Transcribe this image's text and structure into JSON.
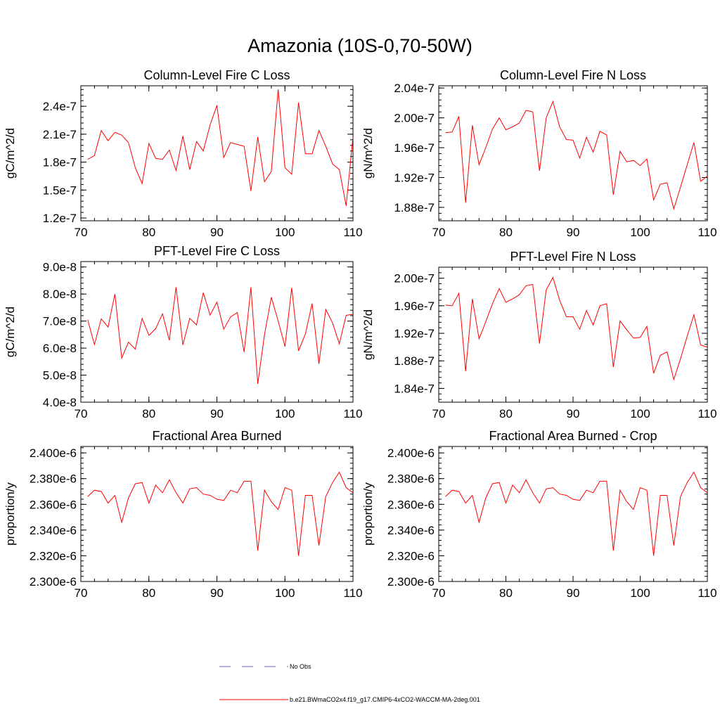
{
  "title": "Amazonia (10S-0,70-50W)",
  "colors": {
    "series": "#ff0000",
    "obs": "#5b6bd6",
    "axis": "#000000"
  },
  "legend": [
    {
      "label": "No Obs",
      "style": "dashed",
      "color": "#5b6bd6"
    },
    {
      "label": "b.e21.BWmaCO2x4.f19_g17.CMIP6-4xCO2-WACCM-MA-2deg.001",
      "style": "solid",
      "color": "#ff0000"
    }
  ],
  "chart_data": [
    {
      "type": "line",
      "title": "Column-Level Fire C Loss",
      "ylabel": "gC/m^2/d",
      "xlim": [
        70,
        110
      ],
      "ylim": [
        1.17e-07,
        2.62e-07
      ],
      "xticks": [
        70,
        80,
        90,
        100,
        110
      ],
      "xtick_labels": [
        "70",
        "80",
        "90",
        "100",
        "110"
      ],
      "yticks": [
        1.2e-07,
        1.5e-07,
        1.8e-07,
        2.1e-07,
        2.4e-07
      ],
      "ytick_labels": [
        "1.2e-7",
        "1.5e-7",
        "1.8e-7",
        "2.1e-7",
        "2.4e-7"
      ],
      "x": [
        71,
        72,
        73,
        74,
        75,
        76,
        77,
        78,
        79,
        80,
        81,
        82,
        83,
        84,
        85,
        86,
        87,
        88,
        89,
        90,
        91,
        92,
        93,
        94,
        95,
        96,
        97,
        98,
        99,
        100,
        101,
        102,
        103,
        104,
        105,
        106,
        107,
        108,
        109,
        110
      ],
      "series": [
        {
          "name": "b.e21.BWmaCO2x4.f19_g17.CMIP6-4xCO2-WACCM-MA-2deg.001",
          "values": [
            1.83e-07,
            1.87e-07,
            2.14e-07,
            2.03e-07,
            2.12e-07,
            2.09e-07,
            2.01e-07,
            1.74e-07,
            1.57e-07,
            2e-07,
            1.84e-07,
            1.83e-07,
            1.93e-07,
            1.71e-07,
            2.08e-07,
            1.72e-07,
            2.02e-07,
            1.92e-07,
            2.2e-07,
            2.41e-07,
            1.85e-07,
            2.01e-07,
            1.99e-07,
            1.97e-07,
            1.49e-07,
            2.07e-07,
            1.59e-07,
            1.7e-07,
            2.58e-07,
            1.74e-07,
            1.67e-07,
            2.44e-07,
            1.89e-07,
            1.89e-07,
            2.14e-07,
            1.97e-07,
            1.78e-07,
            1.72e-07,
            1.33e-07,
            2.07e-07
          ]
        }
      ]
    },
    {
      "type": "line",
      "title": "Column-Level Fire N Loss",
      "ylabel": "gN/m^2/d",
      "xlim": [
        70,
        110
      ],
      "ylim": [
        1.862e-07,
        2.043e-07
      ],
      "xticks": [
        70,
        80,
        90,
        100,
        110
      ],
      "xtick_labels": [
        "70",
        "80",
        "90",
        "100",
        "110"
      ],
      "yticks": [
        1.88e-07,
        1.92e-07,
        1.96e-07,
        2e-07,
        2.04e-07
      ],
      "ytick_labels": [
        "1.88e-7",
        "1.92e-7",
        "1.96e-7",
        "2.00e-7",
        "2.04e-7"
      ],
      "x": [
        71,
        72,
        73,
        74,
        75,
        76,
        77,
        78,
        79,
        80,
        81,
        82,
        83,
        84,
        85,
        86,
        87,
        88,
        89,
        90,
        91,
        92,
        93,
        94,
        95,
        96,
        97,
        98,
        99,
        100,
        101,
        102,
        103,
        104,
        105,
        106,
        107,
        108,
        109,
        110
      ],
      "series": [
        {
          "name": "b.e21.BWmaCO2x4.f19_g17.CMIP6-4xCO2-WACCM-MA-2deg.001",
          "values": [
            1.98e-07,
            1.981e-07,
            2.002e-07,
            1.886e-07,
            1.99e-07,
            1.937e-07,
            1.96e-07,
            1.985e-07,
            2e-07,
            1.984e-07,
            1.988e-07,
            1.993e-07,
            2.01e-07,
            2.008e-07,
            1.929e-07,
            2e-07,
            2.022e-07,
            1.988e-07,
            1.971e-07,
            1.97e-07,
            1.946e-07,
            1.974e-07,
            1.954e-07,
            1.982e-07,
            1.977e-07,
            1.897e-07,
            1.955e-07,
            1.941e-07,
            1.943e-07,
            1.936e-07,
            1.945e-07,
            1.89e-07,
            1.911e-07,
            1.913e-07,
            1.878e-07,
            1.907e-07,
            1.937e-07,
            1.967e-07,
            1.915e-07,
            1.922e-07
          ]
        }
      ]
    },
    {
      "type": "line",
      "title": "PFT-Level Fire C Loss",
      "ylabel": "gC/m^2/d",
      "xlim": [
        70,
        110
      ],
      "ylim": [
        4e-08,
        9.2e-08
      ],
      "xticks": [
        70,
        80,
        90,
        100,
        110
      ],
      "xtick_labels": [
        "70",
        "80",
        "90",
        "100",
        "110"
      ],
      "yticks": [
        4e-08,
        5e-08,
        6e-08,
        7e-08,
        8e-08,
        9e-08
      ],
      "ytick_labels": [
        "4.0e-8",
        "5.0e-8",
        "6.0e-8",
        "7.0e-8",
        "8.0e-8",
        "9.0e-8"
      ],
      "x": [
        71,
        72,
        73,
        74,
        75,
        76,
        77,
        78,
        79,
        80,
        81,
        82,
        83,
        84,
        85,
        86,
        87,
        88,
        89,
        90,
        91,
        92,
        93,
        94,
        95,
        96,
        97,
        98,
        99,
        100,
        101,
        102,
        103,
        104,
        105,
        106,
        107,
        108,
        109,
        110
      ],
      "series": [
        {
          "name": "b.e21.BWmaCO2x4.f19_g17.CMIP6-4xCO2-WACCM-MA-2deg.001",
          "values": [
            7.05e-08,
            6.13e-08,
            7.08e-08,
            6.78e-08,
            8e-08,
            5.63e-08,
            6.22e-08,
            5.96e-08,
            7.1e-08,
            6.47e-08,
            6.72e-08,
            7.27e-08,
            6.29e-08,
            8.25e-08,
            6.12e-08,
            7.1e-08,
            6.86e-08,
            8.05e-08,
            7.22e-08,
            7.7e-08,
            6.7e-08,
            7.15e-08,
            7.32e-08,
            5.85e-08,
            8.25e-08,
            4.68e-08,
            6.5e-08,
            7.88e-08,
            7e-08,
            6.06e-08,
            8.23e-08,
            5.9e-08,
            6.52e-08,
            7.65e-08,
            5.42e-08,
            7.43e-08,
            6.93e-08,
            6.16e-08,
            7.21e-08,
            7.25e-08
          ]
        }
      ]
    },
    {
      "type": "line",
      "title": "PFT-Level Fire N Loss",
      "ylabel": "gN/m^2/d",
      "xlim": [
        70,
        110
      ],
      "ylim": [
        1.82e-07,
        2.016e-07
      ],
      "xticks": [
        70,
        80,
        90,
        100,
        110
      ],
      "xtick_labels": [
        "70",
        "80",
        "90",
        "100",
        "110"
      ],
      "yticks": [
        1.84e-07,
        1.88e-07,
        1.92e-07,
        1.96e-07,
        2e-07
      ],
      "ytick_labels": [
        "1.84e-7",
        "1.88e-7",
        "1.92e-7",
        "1.96e-7",
        "2.00e-7"
      ],
      "x": [
        71,
        72,
        73,
        74,
        75,
        76,
        77,
        78,
        79,
        80,
        81,
        82,
        83,
        84,
        85,
        86,
        87,
        88,
        89,
        90,
        91,
        92,
        93,
        94,
        95,
        96,
        97,
        98,
        99,
        100,
        101,
        102,
        103,
        104,
        105,
        106,
        107,
        108,
        109,
        110
      ],
      "series": [
        {
          "name": "b.e21.BWmaCO2x4.f19_g17.CMIP6-4xCO2-WACCM-MA-2deg.001",
          "values": [
            1.961e-07,
            1.96e-07,
            1.978e-07,
            1.865e-07,
            1.97e-07,
            1.912e-07,
            1.937e-07,
            1.963e-07,
            1.985e-07,
            1.965e-07,
            1.97e-07,
            1.976e-07,
            1.989e-07,
            1.991e-07,
            1.905e-07,
            1.983e-07,
            2.001e-07,
            1.968e-07,
            1.944e-07,
            1.944e-07,
            1.926e-07,
            1.953e-07,
            1.932e-07,
            1.96e-07,
            1.963e-07,
            1.871e-07,
            1.938e-07,
            1.925e-07,
            1.913e-07,
            1.914e-07,
            1.93e-07,
            1.862e-07,
            1.888e-07,
            1.893e-07,
            1.853e-07,
            1.883e-07,
            1.916e-07,
            1.947e-07,
            1.903e-07,
            1.9e-07
          ]
        }
      ]
    },
    {
      "type": "line",
      "title": "Fractional Area Burned",
      "ylabel": "proportion/y",
      "xlim": [
        70,
        110
      ],
      "ylim": [
        2.3e-06,
        2.405e-06
      ],
      "xticks": [
        70,
        80,
        90,
        100,
        110
      ],
      "xtick_labels": [
        "70",
        "80",
        "90",
        "100",
        "110"
      ],
      "yticks": [
        2.3e-06,
        2.32e-06,
        2.34e-06,
        2.36e-06,
        2.38e-06,
        2.4e-06
      ],
      "ytick_labels": [
        "2.300e-6",
        "2.320e-6",
        "2.340e-6",
        "2.360e-6",
        "2.380e-6",
        "2.400e-6"
      ],
      "x": [
        71,
        72,
        73,
        74,
        75,
        76,
        77,
        78,
        79,
        80,
        81,
        82,
        83,
        84,
        85,
        86,
        87,
        88,
        89,
        90,
        91,
        92,
        93,
        94,
        95,
        96,
        97,
        98,
        99,
        100,
        101,
        102,
        103,
        104,
        105,
        106,
        107,
        108,
        109,
        110
      ],
      "series": [
        {
          "name": "b.e21.BWmaCO2x4.f19_g17.CMIP6-4xCO2-WACCM-MA-2deg.001",
          "values": [
            2.366e-06,
            2.371e-06,
            2.37e-06,
            2.361e-06,
            2.367e-06,
            2.346e-06,
            2.365e-06,
            2.376e-06,
            2.377e-06,
            2.361e-06,
            2.375e-06,
            2.369e-06,
            2.379e-06,
            2.369e-06,
            2.361e-06,
            2.372e-06,
            2.373e-06,
            2.368e-06,
            2.367e-06,
            2.364e-06,
            2.363e-06,
            2.371e-06,
            2.369e-06,
            2.378e-06,
            2.378e-06,
            2.324e-06,
            2.371e-06,
            2.362e-06,
            2.356e-06,
            2.373e-06,
            2.371e-06,
            2.32e-06,
            2.367e-06,
            2.367e-06,
            2.328e-06,
            2.366e-06,
            2.377e-06,
            2.385e-06,
            2.373e-06,
            2.369e-06
          ]
        }
      ]
    },
    {
      "type": "line",
      "title": "Fractional Area Burned - Crop",
      "ylabel": "proportion/y",
      "xlim": [
        70,
        110
      ],
      "ylim": [
        2.3e-06,
        2.405e-06
      ],
      "xticks": [
        70,
        80,
        90,
        100,
        110
      ],
      "xtick_labels": [
        "70",
        "80",
        "90",
        "100",
        "110"
      ],
      "yticks": [
        2.3e-06,
        2.32e-06,
        2.34e-06,
        2.36e-06,
        2.38e-06,
        2.4e-06
      ],
      "ytick_labels": [
        "2.300e-6",
        "2.320e-6",
        "2.340e-6",
        "2.360e-6",
        "2.380e-6",
        "2.400e-6"
      ],
      "x": [
        71,
        72,
        73,
        74,
        75,
        76,
        77,
        78,
        79,
        80,
        81,
        82,
        83,
        84,
        85,
        86,
        87,
        88,
        89,
        90,
        91,
        92,
        93,
        94,
        95,
        96,
        97,
        98,
        99,
        100,
        101,
        102,
        103,
        104,
        105,
        106,
        107,
        108,
        109,
        110
      ],
      "series": [
        {
          "name": "b.e21.BWmaCO2x4.f19_g17.CMIP6-4xCO2-WACCM-MA-2deg.001",
          "values": [
            2.366e-06,
            2.371e-06,
            2.37e-06,
            2.361e-06,
            2.367e-06,
            2.346e-06,
            2.365e-06,
            2.376e-06,
            2.377e-06,
            2.361e-06,
            2.375e-06,
            2.369e-06,
            2.379e-06,
            2.369e-06,
            2.361e-06,
            2.372e-06,
            2.373e-06,
            2.368e-06,
            2.367e-06,
            2.364e-06,
            2.363e-06,
            2.371e-06,
            2.369e-06,
            2.378e-06,
            2.378e-06,
            2.324e-06,
            2.371e-06,
            2.362e-06,
            2.356e-06,
            2.373e-06,
            2.371e-06,
            2.32e-06,
            2.367e-06,
            2.367e-06,
            2.328e-06,
            2.366e-06,
            2.377e-06,
            2.385e-06,
            2.373e-06,
            2.369e-06
          ]
        }
      ]
    }
  ]
}
